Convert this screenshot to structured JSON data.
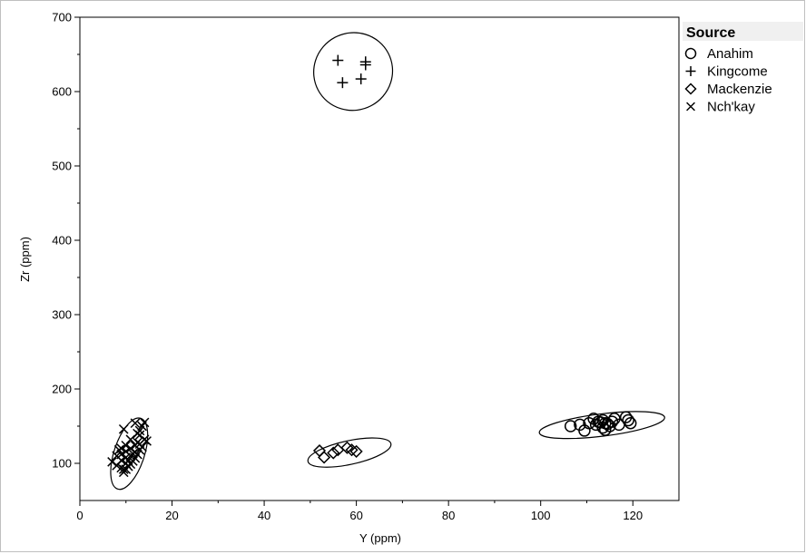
{
  "chart_data": {
    "type": "scatter",
    "xlabel": "Y (ppm)",
    "ylabel": "Zr (ppm)",
    "xlim": [
      0,
      130
    ],
    "ylim": [
      50,
      700
    ],
    "xticks": [
      0,
      20,
      40,
      60,
      80,
      100,
      120
    ],
    "yticks": [
      100,
      200,
      300,
      400,
      500,
      600,
      700
    ],
    "grid": false,
    "legend": {
      "title": "Source",
      "placement": "right",
      "entries": [
        {
          "label": "Anahim",
          "marker": "circle"
        },
        {
          "label": "Kingcome",
          "marker": "plus"
        },
        {
          "label": "Mackenzie",
          "marker": "diamond"
        },
        {
          "label": "Nch'kay",
          "marker": "x"
        }
      ]
    },
    "series": [
      {
        "name": "Anahim",
        "marker": "circle",
        "points": [
          [
            106.5,
            150
          ],
          [
            108.5,
            152
          ],
          [
            109.5,
            144
          ],
          [
            110.5,
            154
          ],
          [
            111.5,
            160
          ],
          [
            112.5,
            156
          ],
          [
            113,
            155
          ],
          [
            113.5,
            158
          ],
          [
            114,
            154
          ],
          [
            114,
            145
          ],
          [
            114.5,
            153
          ],
          [
            115,
            150
          ],
          [
            115.5,
            156
          ],
          [
            116,
            160
          ],
          [
            117,
            152
          ],
          [
            118.5,
            162
          ],
          [
            119,
            158
          ],
          [
            119.5,
            154
          ],
          [
            113.5,
            148
          ],
          [
            112,
            152
          ]
        ],
        "ellipse": {
          "cx": 113.3,
          "cy": 151.5,
          "rx": 13.7,
          "ry": 15,
          "angle_deg": -7
        }
      },
      {
        "name": "Kingcome",
        "marker": "plus",
        "points": [
          [
            56,
            642
          ],
          [
            62,
            640
          ],
          [
            62,
            636
          ],
          [
            57,
            612
          ],
          [
            61,
            617
          ]
        ],
        "ellipse": {
          "cx": 59.3,
          "cy": 627,
          "rx": 8.6,
          "ry": 52,
          "angle_deg": -28
        }
      },
      {
        "name": "Mackenzie",
        "marker": "diamond",
        "points": [
          [
            52,
            117
          ],
          [
            53,
            108
          ],
          [
            55,
            114
          ],
          [
            56,
            118
          ],
          [
            58,
            121
          ],
          [
            59,
            118
          ],
          [
            60,
            116
          ]
        ],
        "ellipse": {
          "cx": 58.5,
          "cy": 114.5,
          "rx": 9.2,
          "ry": 16,
          "angle_deg": -12
        }
      },
      {
        "name": "Nch'kay",
        "marker": "x",
        "points": [
          [
            7,
            102
          ],
          [
            8,
            97
          ],
          [
            8,
            110
          ],
          [
            9,
            94
          ],
          [
            9,
            104
          ],
          [
            9,
            112
          ],
          [
            9.5,
            146
          ],
          [
            9.5,
            92
          ],
          [
            10,
            100
          ],
          [
            10,
            108
          ],
          [
            10,
            116
          ],
          [
            10.5,
            96
          ],
          [
            10.5,
            104
          ],
          [
            11,
            99
          ],
          [
            11,
            110
          ],
          [
            11,
            120
          ],
          [
            11.5,
            103
          ],
          [
            11.5,
            113
          ],
          [
            12,
            107
          ],
          [
            12,
            115
          ],
          [
            12,
            124
          ],
          [
            12,
            154
          ],
          [
            12.5,
            112
          ],
          [
            12.5,
            128
          ],
          [
            13,
            118
          ],
          [
            13,
            126
          ],
          [
            13,
            138
          ],
          [
            13.5,
            122
          ],
          [
            13.5,
            150
          ],
          [
            14,
            132
          ],
          [
            14,
            155
          ],
          [
            14.5,
            130
          ],
          [
            8.5,
            118
          ],
          [
            9,
            120
          ],
          [
            10,
            124
          ],
          [
            11,
            132
          ],
          [
            12.5,
            140
          ],
          [
            13,
            144
          ],
          [
            9.5,
            88
          ],
          [
            10,
            92
          ]
        ],
        "ellipse": {
          "cx": 10.7,
          "cy": 113,
          "rx": 3.3,
          "ry": 50,
          "angle_deg": 18
        }
      }
    ]
  }
}
